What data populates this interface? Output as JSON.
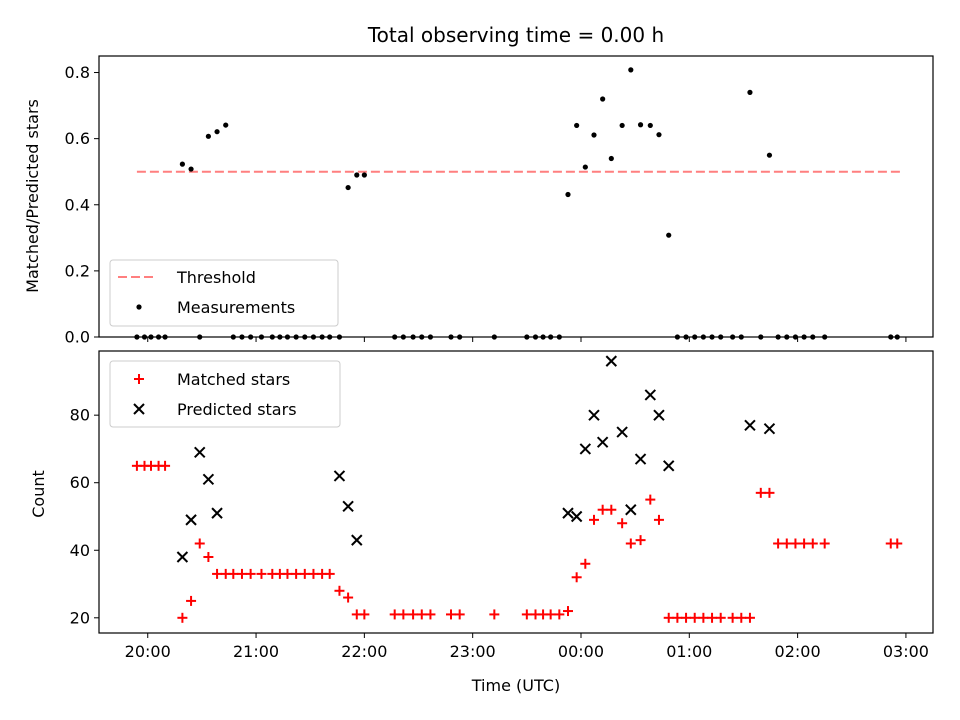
{
  "chart_data": {
    "title": "Total observing time = 0.00 h",
    "xlabel": "Time (UTC)",
    "x_unit": "hours after 20:00 UTC",
    "xlim": [
      -0.45,
      7.25
    ],
    "xticks": [
      {
        "value": 0,
        "label": "20:00"
      },
      {
        "value": 1,
        "label": "21:00"
      },
      {
        "value": 2,
        "label": "22:00"
      },
      {
        "value": 3,
        "label": "23:00"
      },
      {
        "value": 4,
        "label": "00:00"
      },
      {
        "value": 5,
        "label": "01:00"
      },
      {
        "value": 6,
        "label": "02:00"
      },
      {
        "value": 7,
        "label": "03:00"
      }
    ],
    "top": {
      "type": "scatter",
      "ylabel": "Matched/Predicted stars",
      "ylim": [
        0,
        0.85
      ],
      "yticks": [
        0,
        0.2,
        0.4,
        0.6,
        0.8
      ],
      "ytick_labels": [
        "0.0",
        "0.2",
        "0.4",
        "0.6",
        "0.8"
      ],
      "grid": false,
      "legend": "lower-left",
      "threshold": {
        "name": "Threshold",
        "value": 0.5,
        "x_range": [
          -0.1,
          6.95
        ],
        "color": "#ff7f7f"
      },
      "series": [
        {
          "name": "Measurements",
          "color": "#000000",
          "x": [
            -0.1,
            -0.03,
            0.03,
            0.1,
            0.16,
            0.32,
            0.4,
            0.48,
            0.56,
            0.64,
            0.72,
            0.79,
            0.87,
            0.95,
            1.05,
            1.15,
            1.22,
            1.29,
            1.37,
            1.45,
            1.53,
            1.61,
            1.68,
            1.77,
            1.85,
            1.93,
            2.0,
            2.28,
            2.36,
            2.45,
            2.53,
            2.61,
            2.8,
            2.88,
            3.2,
            3.5,
            3.58,
            3.65,
            3.72,
            3.8,
            3.88,
            3.96,
            4.04,
            4.12,
            4.2,
            4.28,
            4.38,
            4.46,
            4.55,
            4.64,
            4.72,
            4.81,
            4.89,
            4.97,
            5.05,
            5.13,
            5.21,
            5.29,
            5.4,
            5.48,
            5.56,
            5.66,
            5.74,
            5.82,
            5.9,
            5.98,
            6.06,
            6.14,
            6.25,
            6.86,
            6.92
          ],
          "y": [
            0,
            0,
            0,
            0,
            0,
            0.523,
            0.508,
            0,
            0.607,
            0.621,
            0.641,
            0,
            0,
            0,
            0,
            0,
            0,
            0,
            0,
            0,
            0,
            0,
            0,
            0,
            0.452,
            0.49,
            0.49,
            0,
            0,
            0,
            0,
            0,
            0,
            0,
            0,
            0,
            0,
            0,
            0,
            0,
            0.431,
            0.64,
            0.514,
            0.611,
            0.72,
            0.54,
            0.64,
            0.808,
            0.642,
            0.64,
            0.612,
            0.308,
            0,
            0,
            0,
            0,
            0,
            0,
            0,
            0,
            0.74,
            0,
            0.55,
            0,
            0,
            0,
            0,
            0,
            0,
            0,
            0
          ]
        }
      ]
    },
    "bottom": {
      "type": "scatter",
      "ylabel": "Count",
      "ylim": [
        15.5,
        99
      ],
      "yticks": [
        20,
        40,
        60,
        80
      ],
      "grid": false,
      "legend": "top-left",
      "series": [
        {
          "name": "Matched stars",
          "marker": "+",
          "color": "#ff0000",
          "x": [
            -0.1,
            -0.03,
            0.03,
            0.1,
            0.16,
            0.32,
            0.4,
            0.48,
            0.56,
            0.64,
            0.72,
            0.79,
            0.87,
            0.95,
            1.05,
            1.15,
            1.22,
            1.29,
            1.37,
            1.45,
            1.53,
            1.61,
            1.68,
            1.77,
            1.85,
            1.93,
            2.0,
            2.28,
            2.36,
            2.45,
            2.53,
            2.61,
            2.8,
            2.88,
            3.2,
            3.5,
            3.58,
            3.65,
            3.72,
            3.8,
            3.88,
            3.96,
            4.04,
            4.12,
            4.2,
            4.28,
            4.38,
            4.46,
            4.55,
            4.64,
            4.72,
            4.81,
            4.89,
            4.97,
            5.05,
            5.13,
            5.21,
            5.29,
            5.4,
            5.48,
            5.56,
            5.66,
            5.74,
            5.82,
            5.9,
            5.98,
            6.06,
            6.14,
            6.25,
            6.86,
            6.92
          ],
          "y": [
            65,
            65,
            65,
            65,
            65,
            20,
            25,
            42,
            38,
            33,
            33,
            33,
            33,
            33,
            33,
            33,
            33,
            33,
            33,
            33,
            33,
            33,
            33,
            28,
            26,
            21,
            21,
            21,
            21,
            21,
            21,
            21,
            21,
            21,
            21,
            21,
            21,
            21,
            21,
            21,
            22,
            32,
            36,
            49,
            52,
            52,
            48,
            42,
            43,
            55,
            49,
            20,
            20,
            20,
            20,
            20,
            20,
            20,
            20,
            20,
            20,
            57,
            57,
            42,
            42,
            42,
            42,
            42,
            42,
            42,
            42
          ]
        },
        {
          "name": "Predicted stars",
          "marker": "x",
          "color": "#000000",
          "x": [
            0.32,
            0.4,
            0.48,
            0.56,
            0.64,
            1.77,
            1.85,
            1.93,
            3.88,
            3.96,
            4.04,
            4.12,
            4.2,
            4.28,
            4.38,
            4.46,
            4.55,
            4.64,
            4.72,
            4.81,
            5.56,
            5.74
          ],
          "y": [
            38,
            49,
            69,
            61,
            51,
            62,
            53,
            43,
            51,
            50,
            70,
            80,
            72,
            96,
            75,
            52,
            67,
            86,
            80,
            65,
            77,
            76
          ]
        }
      ]
    }
  }
}
